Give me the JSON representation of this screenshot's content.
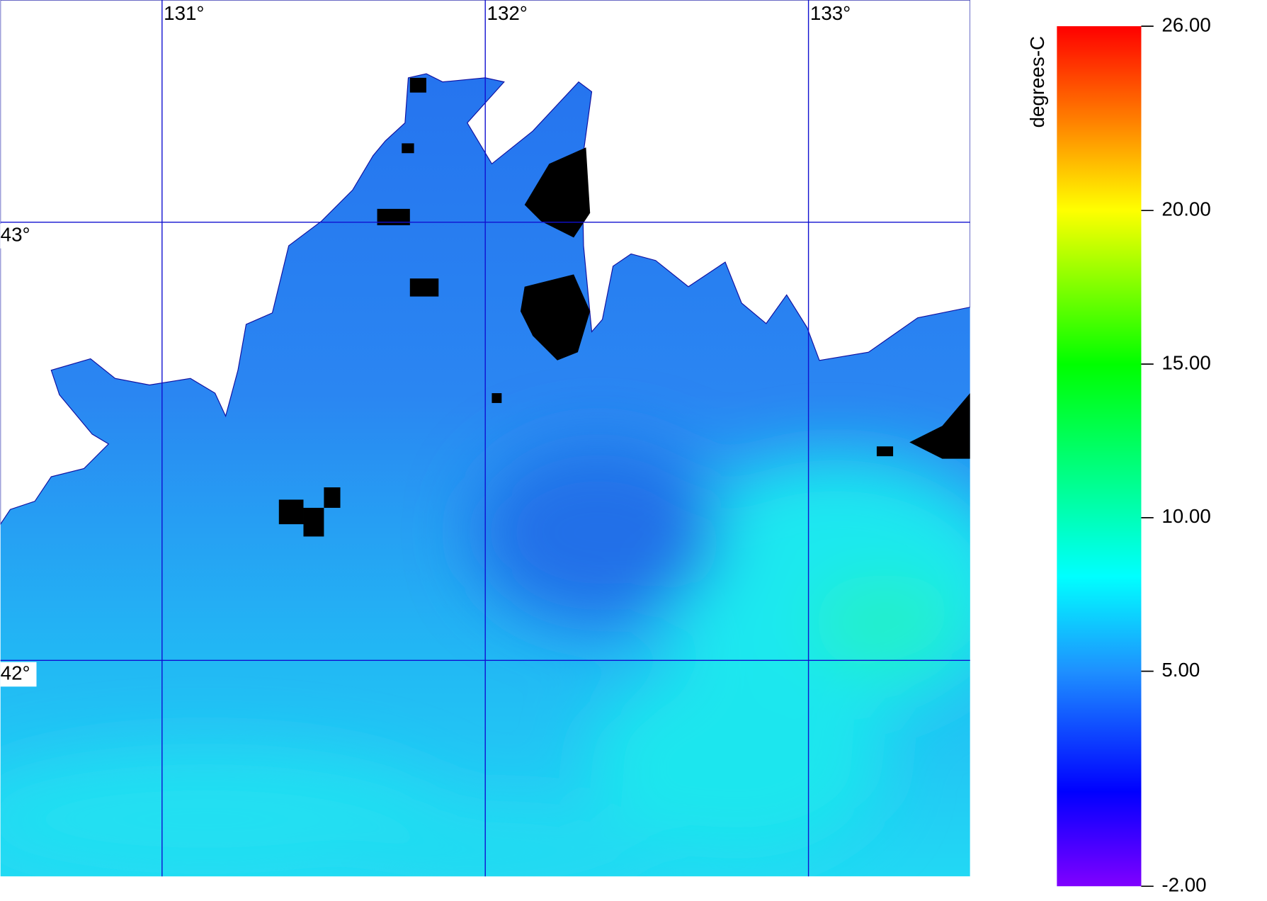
{
  "map": {
    "lon_range": [
      130.5,
      133.5
    ],
    "lat_range": [
      41.507,
      43.507
    ],
    "lon_ticks": [
      {
        "value": 131,
        "label": "131°"
      },
      {
        "value": 132,
        "label": "132°"
      },
      {
        "value": 133,
        "label": "133°"
      }
    ],
    "lat_ticks": [
      {
        "value": 43,
        "label": "43°"
      },
      {
        "value": 42,
        "label": "42°"
      }
    ]
  },
  "colorbar": {
    "unit": "degrees-C",
    "range": [
      -2,
      26
    ],
    "ticks": [
      {
        "value": 26,
        "label": "26.00"
      },
      {
        "value": 20,
        "label": "20.00"
      },
      {
        "value": 15,
        "label": "15.00"
      },
      {
        "value": 10,
        "label": "10.00"
      },
      {
        "value": 5,
        "label": "5.00"
      },
      {
        "value": -2,
        "label": "-2.00"
      }
    ]
  }
}
